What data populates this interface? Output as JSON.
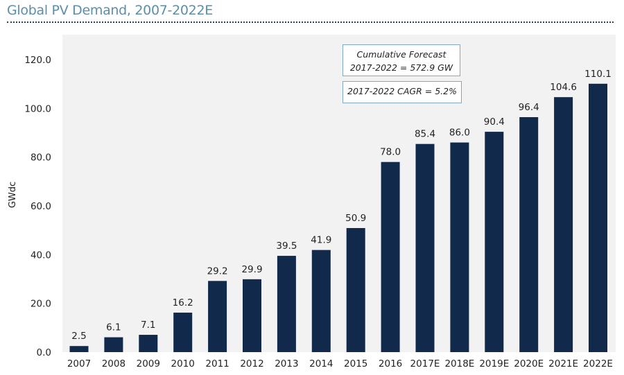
{
  "chart_data": {
    "type": "bar",
    "title": "Global PV Demand, 2007-2022E",
    "xlabel": "",
    "ylabel": "GWdc",
    "ylim": [
      0,
      120
    ],
    "yticks": [
      "0.0",
      "20.0",
      "40.0",
      "60.0",
      "80.0",
      "100.0",
      "120.0"
    ],
    "ytick_values": [
      0,
      20,
      40,
      60,
      80,
      100,
      120
    ],
    "grid": false,
    "categories": [
      "2007",
      "2008",
      "2009",
      "2010",
      "2011",
      "2012",
      "2013",
      "2014",
      "2015",
      "2016",
      "2017E",
      "2018E",
      "2019E",
      "2020E",
      "2021E",
      "2022E"
    ],
    "values": [
      2.5,
      6.1,
      7.1,
      16.2,
      29.2,
      29.9,
      39.5,
      41.9,
      50.9,
      78.0,
      85.4,
      86.0,
      90.4,
      96.4,
      104.6,
      110.1
    ],
    "data_labels": [
      "2.5",
      "6.1",
      "7.1",
      "16.2",
      "29.2",
      "29.9",
      "39.5",
      "41.9",
      "50.9",
      "78.0",
      "85.4",
      "86.0",
      "90.4",
      "96.4",
      "104.6",
      "110.1"
    ],
    "bar_color": "#11294a",
    "plot_background": "#f2f2f2",
    "annotations": [
      {
        "line1": "Cumulative Forecast",
        "line2": "2017-2022 = 572.9 GW"
      },
      {
        "line1": "2017-2022 CAGR = 5.2%"
      }
    ]
  }
}
